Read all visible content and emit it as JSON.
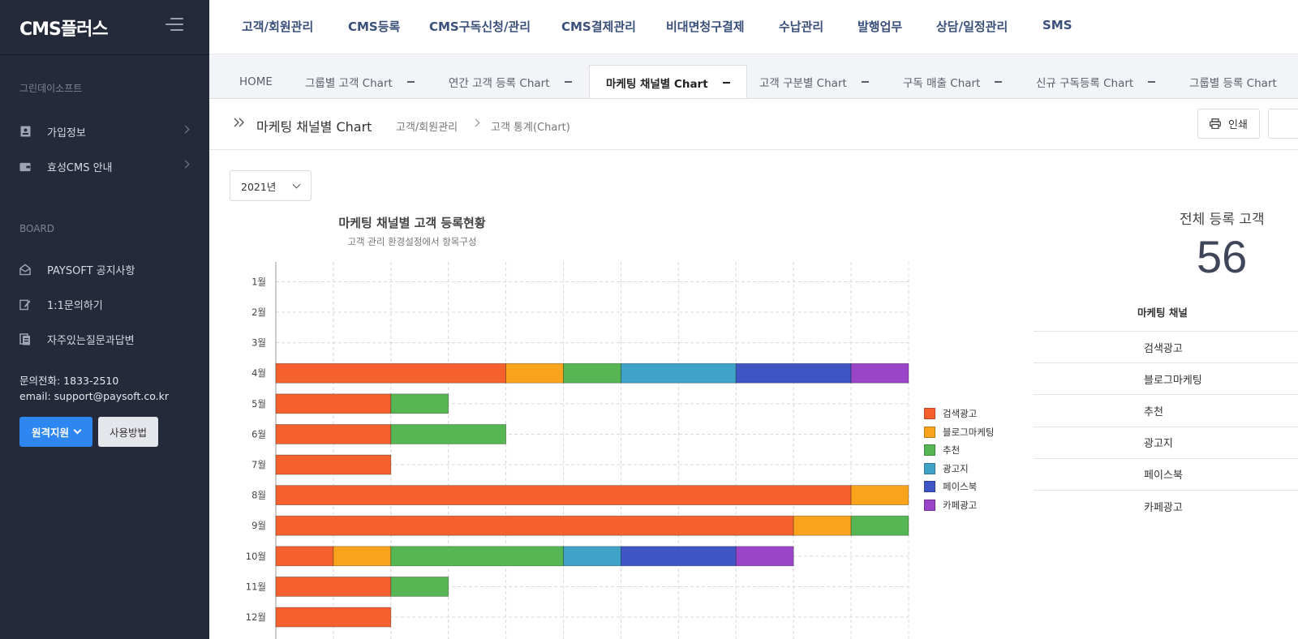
{
  "sidebar": {
    "logo": "CMS플러스",
    "company": "그린데이소프트",
    "items": [
      {
        "label": "가입정보"
      },
      {
        "label": "효성CMS 안내"
      }
    ],
    "board_title": "BOARD",
    "board_items": [
      {
        "label": "PAYSOFT 공지사항"
      },
      {
        "label": "1:1문의하기"
      },
      {
        "label": "자주있는질문과답변"
      }
    ],
    "phone": "문의전화: 1833-2510",
    "email": "email: support@paysoft.co.kr",
    "remote_button": "원격지원",
    "usage_button": "사용방법"
  },
  "topnav": [
    "고객/회원관리",
    "CMS등록",
    "CMS구독신청/관리",
    "CMS결제관리",
    "비대면청구결제",
    "수납관리",
    "발행업무",
    "상담/일정관리",
    "SMS"
  ],
  "tabs": [
    {
      "label": "HOME",
      "active": false
    },
    {
      "label": "그룹별 고객 Chart",
      "active": false
    },
    {
      "label": "연간 고객 등록 Chart",
      "active": false
    },
    {
      "label": "마케팅 채널별 Chart",
      "active": true
    },
    {
      "label": "고객 구분별 Chart",
      "active": false
    },
    {
      "label": "구독 매출 Chart",
      "active": false
    },
    {
      "label": "신규 구독등록 Chart",
      "active": false
    },
    {
      "label": "그룹별 등록 Chart",
      "active": false
    }
  ],
  "breadcrumb": {
    "title": "마케팅 채널별 Chart",
    "path": [
      "고객/회원관리",
      "고객 통계(Chart)"
    ]
  },
  "actions": {
    "print": "인쇄"
  },
  "year_select": {
    "value": "2021년"
  },
  "summary": {
    "total_label": "전체 등록 고객",
    "total_value": "56",
    "table_header": "마케팅 채널",
    "channels": [
      "검색광고",
      "블로그마케팅",
      "추천",
      "광고지",
      "페이스북",
      "카페광고"
    ]
  },
  "colors": {
    "검색광고": "#f4612e",
    "블로그마케팅": "#f9a31c",
    "추천": "#56b654",
    "광고지": "#3fa3c8",
    "페이스북": "#3f55c6",
    "카페광고": "#9a44c8"
  },
  "chart_data": {
    "type": "bar",
    "orientation": "horizontal",
    "stacked": true,
    "title": "마케팅 채널별 고객 등록현황",
    "subtitle": "고객 관리 환경설정에서 항목구성",
    "categories": [
      "1월",
      "2월",
      "3월",
      "4월",
      "5월",
      "6월",
      "7월",
      "8월",
      "9월",
      "10월",
      "11월",
      "12월"
    ],
    "series": [
      {
        "name": "검색광고",
        "values": [
          0,
          0,
          0,
          4,
          2,
          2,
          2,
          10,
          9,
          1,
          2,
          2
        ]
      },
      {
        "name": "블로그마케팅",
        "values": [
          0,
          0,
          0,
          1,
          0,
          0,
          0,
          1,
          1,
          1,
          0,
          0
        ]
      },
      {
        "name": "추천",
        "values": [
          0,
          0,
          0,
          1,
          1,
          2,
          0,
          0,
          1,
          3,
          1,
          0
        ]
      },
      {
        "name": "광고지",
        "values": [
          0,
          0,
          0,
          2,
          0,
          0,
          0,
          0,
          0,
          1,
          0,
          0
        ]
      },
      {
        "name": "페이스북",
        "values": [
          0,
          0,
          0,
          2,
          0,
          0,
          0,
          0,
          0,
          2,
          0,
          0
        ]
      },
      {
        "name": "카페광고",
        "values": [
          0,
          0,
          0,
          1,
          0,
          0,
          0,
          0,
          0,
          1,
          0,
          0
        ]
      }
    ],
    "xlim": [
      0,
      11
    ],
    "grid": true,
    "legend": "right"
  }
}
